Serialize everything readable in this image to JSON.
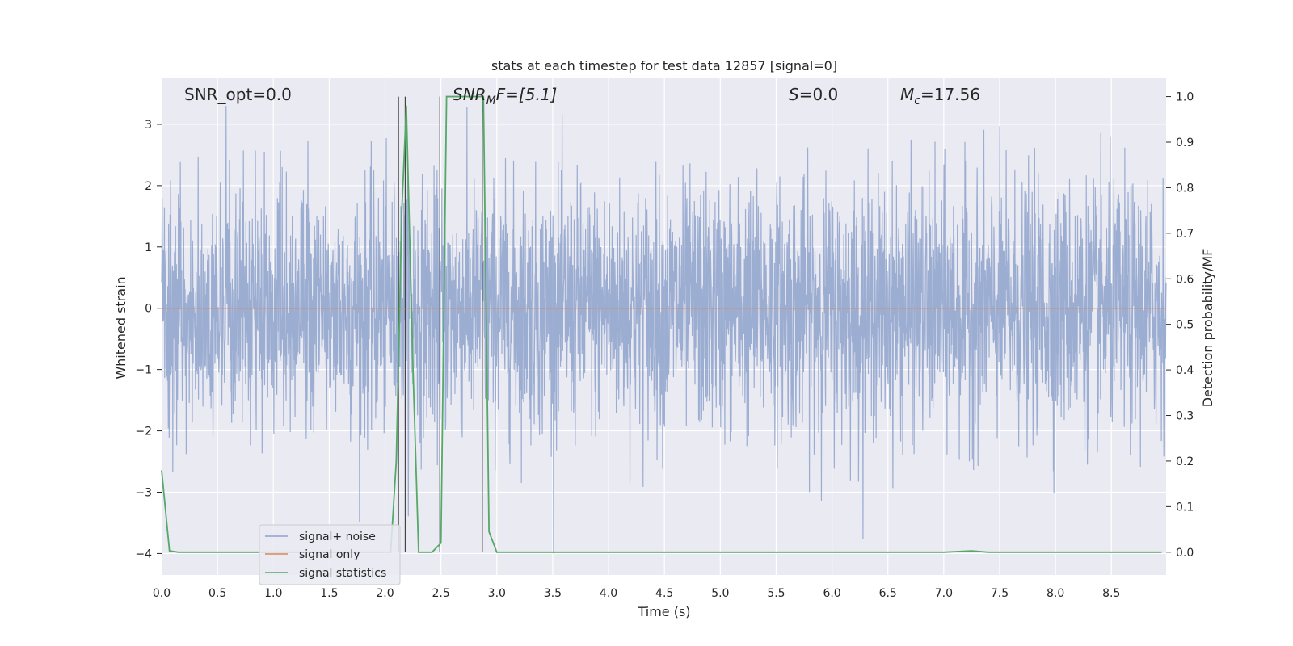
{
  "chart_data": {
    "type": "line",
    "title": "stats at each timestep for test data 12857 [signal=0]",
    "xlabel": "Time (s)",
    "ylabel_left": "Whitened strain",
    "ylabel_right": "Detection probability/MF",
    "xlim": [
      0,
      8.99
    ],
    "ylim_left": [
      -4.35,
      3.75
    ],
    "ylim_right": [
      -0.05,
      1.04
    ],
    "x_ticks": [
      "0.0",
      "0.5",
      "1.0",
      "1.5",
      "2.0",
      "2.5",
      "3.0",
      "3.5",
      "4.0",
      "4.5",
      "5.0",
      "5.5",
      "6.0",
      "6.5",
      "7.0",
      "7.5",
      "8.0",
      "8.5"
    ],
    "y_left_ticks": [
      "3",
      "2",
      "1",
      "0",
      "−1",
      "−2",
      "−3",
      "−4"
    ],
    "y_left_values": [
      3,
      2,
      1,
      0,
      -1,
      -2,
      -3,
      -4
    ],
    "y_right_ticks": [
      "1.0",
      "0.9",
      "0.8",
      "0.7",
      "0.6",
      "0.5",
      "0.4",
      "0.3",
      "0.2",
      "0.1",
      "0.0"
    ],
    "y_right_values": [
      1.0,
      0.9,
      0.8,
      0.7,
      0.6,
      0.5,
      0.4,
      0.3,
      0.2,
      0.1,
      0.0
    ],
    "grid": true,
    "legend_position": "lower-left",
    "annotations": {
      "snr_opt": "SNR_opt=0.0",
      "snr_mf_main": "SNR",
      "snr_mf_sub": "M",
      "snr_mf_rest": "F=[5.1]",
      "s_main": "S",
      "s_rest": "=0.0",
      "mc_main": "M",
      "mc_sub": "c",
      "mc_rest": "=17.56"
    },
    "series": [
      {
        "name": "signal+ noise",
        "color": "#8ea2cc",
        "axis": "left",
        "description_kind": "noise",
        "amplitude_std": 1.0,
        "x_range": [
          0,
          8.99
        ]
      },
      {
        "name": "signal only",
        "color": "#dd8452",
        "axis": "left",
        "x": [
          0,
          8.99
        ],
        "y": [
          0,
          0
        ]
      },
      {
        "name": "signal statistics",
        "color": "#55a868",
        "axis": "right",
        "x": [
          0.0,
          0.07,
          0.15,
          2.05,
          2.1,
          2.15,
          2.19,
          2.25,
          2.3,
          2.42,
          2.5,
          2.55,
          2.62,
          2.88,
          2.93,
          3.0,
          7.0,
          7.25,
          7.4,
          8.95
        ],
        "y": [
          0.18,
          0.003,
          0.0,
          0.0,
          0.2,
          0.75,
          0.98,
          0.4,
          0.0,
          0.0,
          0.02,
          1.0,
          1.0,
          1.0,
          0.045,
          0.0,
          0.0,
          0.003,
          0.0,
          0.0
        ]
      }
    ],
    "vertical_lines": [
      2.12,
      2.18,
      2.49,
      2.87
    ],
    "legend": [
      "signal+ noise",
      "signal only",
      "signal statistics"
    ]
  }
}
